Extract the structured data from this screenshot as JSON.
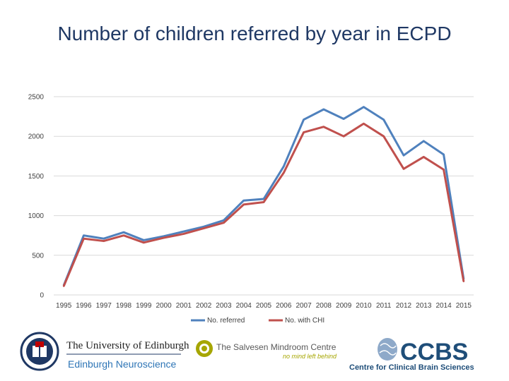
{
  "title": "Number of children referred by year in ECPD",
  "chart_data": {
    "type": "line",
    "title": "Number of children referred by year in ECPD",
    "xlabel": "",
    "ylabel": "",
    "categories": [
      "1995",
      "1996",
      "1997",
      "1998",
      "1999",
      "2000",
      "2001",
      "2002",
      "2003",
      "2004",
      "2005",
      "2006",
      "2007",
      "2008",
      "2009",
      "2010",
      "2011",
      "2012",
      "2013",
      "2014",
      "2015"
    ],
    "ylim": [
      0,
      2500
    ],
    "yticks": [
      "0",
      "500",
      "1000",
      "1500",
      "2000",
      "2500"
    ],
    "grid": true,
    "legend_position": "bottom",
    "series": [
      {
        "name": "No. referred",
        "color": "#4f81bd",
        "values": [
          120,
          750,
          710,
          790,
          690,
          740,
          800,
          860,
          940,
          1190,
          1210,
          1620,
          2210,
          2340,
          2220,
          2370,
          2210,
          1760,
          1940,
          1770,
          200
        ]
      },
      {
        "name": "No. with CHI",
        "color": "#c0504d",
        "values": [
          110,
          710,
          680,
          750,
          660,
          720,
          770,
          840,
          910,
          1140,
          1170,
          1540,
          2050,
          2120,
          2000,
          2160,
          2000,
          1590,
          1740,
          1580,
          170
        ]
      }
    ]
  },
  "logos": {
    "edinburgh_line1": "The University of Edinburgh",
    "edinburgh_line2": "Edinburgh Neuroscience",
    "salvesen_line1": "The Salvesen Mindroom Centre",
    "salvesen_line2": "no mind left behind",
    "ccbs_main": "CCBS",
    "ccbs_sub": "Centre for Clinical Brain Sciences",
    "colors": {
      "edinburgh_blue": "#1f3864",
      "neuro_blue": "#2e75b6",
      "salvesen_olive": "#a6a600",
      "ccbs_blue": "#1f4e79"
    }
  }
}
